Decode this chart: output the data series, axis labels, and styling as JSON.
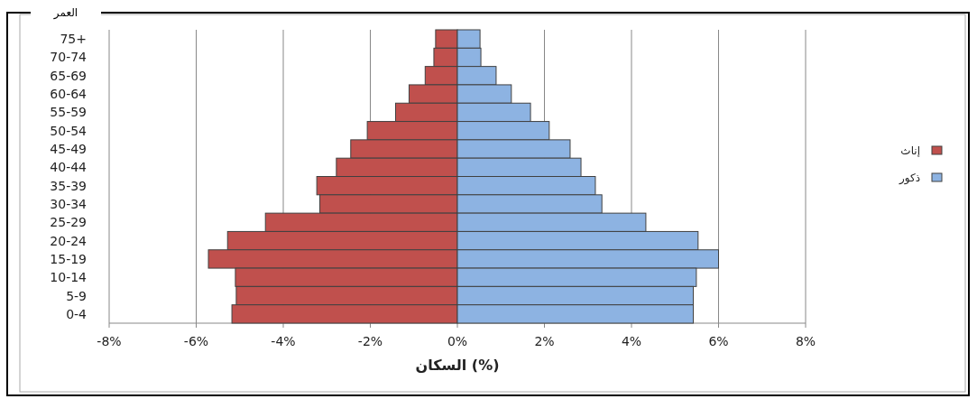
{
  "chart_data": {
    "type": "bar",
    "orientation": "horizontal",
    "stacked": true,
    "ylabel": "العمر",
    "xlabel": "السكان (%)",
    "categories": [
      "75+",
      "70-74",
      "65-69",
      "60-64",
      "55-59",
      "50-54",
      "45-49",
      "40-44",
      "35-39",
      "30-34",
      "25-29",
      "20-24",
      "15-19",
      "10-14",
      "5-9",
      "0-4"
    ],
    "series": [
      {
        "name": "إناث",
        "color": "#c0504d",
        "values": [
          -0.5,
          -0.54,
          -0.74,
          -1.11,
          -1.42,
          -2.07,
          -2.45,
          -2.78,
          -3.23,
          -3.16,
          -4.41,
          -5.28,
          -5.72,
          -5.1,
          -5.08,
          -5.18
        ]
      },
      {
        "name": "ذكور",
        "color": "#8db3e2",
        "values": [
          0.52,
          0.54,
          0.89,
          1.24,
          1.68,
          2.11,
          2.59,
          2.84,
          3.17,
          3.32,
          4.33,
          5.53,
          6.0,
          5.49,
          5.42,
          5.42
        ]
      }
    ],
    "xlim": [
      -8,
      8
    ],
    "xticks": [
      {
        "value": -8,
        "label": "-8%"
      },
      {
        "value": -6,
        "label": "-6%"
      },
      {
        "value": -4,
        "label": "-4%"
      },
      {
        "value": -2,
        "label": "-2%"
      },
      {
        "value": 0,
        "label": "0%"
      },
      {
        "value": 2,
        "label": "2%"
      },
      {
        "value": 4,
        "label": "4%"
      },
      {
        "value": 6,
        "label": "6%"
      },
      {
        "value": 8,
        "label": "8%"
      }
    ],
    "grid": "x",
    "legend": "right"
  }
}
